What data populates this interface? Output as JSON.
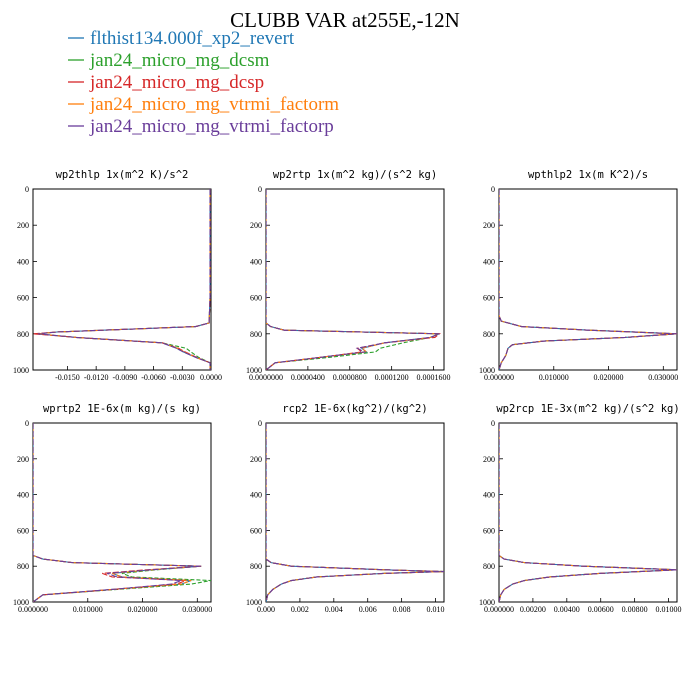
{
  "title": "CLUBB VAR at255E,-12N",
  "legend": [
    {
      "label": "flthist134.000f_xp2_revert",
      "color": "#1f77b4"
    },
    {
      "label": "jan24_micro_mg_dcsm",
      "color": "#2ca02c"
    },
    {
      "label": "jan24_micro_mg_dcsp",
      "color": "#d62728"
    },
    {
      "label": "jan24_micro_mg_vtrmi_factorm",
      "color": "#ff7f0e"
    },
    {
      "label": "jan24_micro_mg_vtrmi_factorp",
      "color": "#6a3d9a"
    }
  ],
  "chart_data": [
    {
      "type": "line",
      "title": "wp2thlp  1x(m^2 K)/s^2",
      "ylim": [
        1000,
        0
      ],
      "xlim": [
        -0.0185,
        0.0001
      ],
      "yticks": [
        "0",
        "200",
        "400",
        "600",
        "800",
        "1000"
      ],
      "xticks": [
        "-0.0150",
        "-0.0120",
        "-0.0090",
        "-0.0060",
        "-0.0030",
        "0.0000"
      ],
      "y": [
        0,
        600,
        740,
        760,
        790,
        800,
        820,
        850,
        880,
        900,
        930,
        960,
        1000
      ],
      "series": [
        {
          "values": [
            0,
            0,
            -0.0001,
            -0.0015,
            -0.016,
            -0.018,
            -0.014,
            -0.005,
            -0.0035,
            -0.0028,
            -0.0015,
            0,
            0
          ]
        },
        {
          "values": [
            0,
            0,
            -0.0001,
            -0.0015,
            -0.016,
            -0.018,
            -0.014,
            -0.005,
            -0.0025,
            -0.002,
            -0.0012,
            0,
            0
          ]
        },
        {
          "values": [
            0,
            0,
            -0.0001,
            -0.0015,
            -0.016,
            -0.0185,
            -0.014,
            -0.005,
            -0.0033,
            -0.0026,
            -0.0014,
            0,
            0
          ]
        },
        {
          "values": [
            0,
            0,
            -0.0001,
            -0.0015,
            -0.016,
            -0.018,
            -0.014,
            -0.005,
            -0.0034,
            -0.0027,
            -0.0015,
            0,
            0
          ]
        },
        {
          "values": [
            0,
            0,
            -0.0001,
            -0.0015,
            -0.016,
            -0.018,
            -0.014,
            -0.005,
            -0.0035,
            -0.0028,
            -0.0015,
            0,
            0
          ]
        }
      ]
    },
    {
      "type": "line",
      "title": "wp2rtp  1x(m^2 kg)/(s^2 kg)",
      "ylim": [
        1000,
        0
      ],
      "xlim": [
        0,
        0.000195
      ],
      "yticks": [
        "0",
        "200",
        "400",
        "600",
        "800",
        "1000"
      ],
      "xticks": [
        "0.0000000",
        "0.0000400",
        "0.0000800",
        "0.0001200",
        "0.0001600"
      ],
      "y": [
        0,
        740,
        760,
        780,
        800,
        820,
        850,
        880,
        900,
        930,
        960,
        1000
      ],
      "series": [
        {
          "values": [
            0,
            0,
            5e-06,
            2e-05,
            0.00019,
            0.00018,
            0.00013,
            0.000105,
            0.00011,
            6e-05,
            1e-05,
            0
          ]
        },
        {
          "values": [
            0,
            0,
            5e-06,
            2e-05,
            0.00019,
            0.00018,
            0.00015,
            0.000125,
            0.00012,
            7e-05,
            1e-05,
            0
          ]
        },
        {
          "values": [
            0,
            0,
            5e-06,
            2e-05,
            0.00019,
            0.000185,
            0.00013,
            0.0001,
            0.000105,
            6e-05,
            1e-05,
            0
          ]
        },
        {
          "values": [
            0,
            0,
            5e-06,
            2e-05,
            0.00019,
            0.00018,
            0.00013,
            0.000105,
            0.00011,
            6e-05,
            1e-05,
            0
          ]
        },
        {
          "values": [
            0,
            0,
            5e-06,
            2e-05,
            0.00019,
            0.00018,
            0.00013,
            0.0001,
            0.000108,
            6e-05,
            1e-05,
            0
          ]
        }
      ]
    },
    {
      "type": "line",
      "title": "wpthlp2  1x(m K^2)/s",
      "ylim": [
        1000,
        0
      ],
      "xlim": [
        0,
        0.0395
      ],
      "yticks": [
        "0",
        "200",
        "400",
        "600",
        "800",
        "1000"
      ],
      "xticks": [
        "0.000000",
        "0.010000",
        "0.020000",
        "0.030000"
      ],
      "y": [
        0,
        700,
        730,
        760,
        780,
        800,
        820,
        840,
        860,
        880,
        920,
        960,
        1000
      ],
      "series": [
        {
          "values": [
            0,
            0,
            0.0005,
            0.005,
            0.02,
            0.0395,
            0.028,
            0.01,
            0.003,
            0.002,
            0.0015,
            0.0005,
            0
          ]
        },
        {
          "values": [
            0,
            0,
            0.0005,
            0.005,
            0.02,
            0.0395,
            0.028,
            0.01,
            0.003,
            0.002,
            0.0015,
            0.0005,
            0
          ]
        },
        {
          "values": [
            0,
            0,
            0.0005,
            0.005,
            0.02,
            0.0395,
            0.028,
            0.01,
            0.003,
            0.002,
            0.0015,
            0.0005,
            0
          ]
        },
        {
          "values": [
            0,
            0,
            0.0005,
            0.005,
            0.02,
            0.0395,
            0.028,
            0.01,
            0.003,
            0.002,
            0.0015,
            0.0005,
            0
          ]
        },
        {
          "values": [
            0,
            0,
            0.0005,
            0.005,
            0.02,
            0.0395,
            0.028,
            0.01,
            0.003,
            0.002,
            0.0015,
            0.0005,
            0
          ]
        }
      ]
    },
    {
      "type": "line",
      "title": "wprtp2  1E-6x(m kg)/(s kg)",
      "ylim": [
        1000,
        0
      ],
      "xlim": [
        0,
        0.036
      ],
      "yticks": [
        "0",
        "200",
        "400",
        "600",
        "800",
        "1000"
      ],
      "xticks": [
        "0.000000",
        "0.010000",
        "0.020000",
        "0.030000"
      ],
      "y": [
        0,
        740,
        760,
        780,
        800,
        820,
        840,
        860,
        880,
        900,
        930,
        960,
        1000
      ],
      "series": [
        {
          "values": [
            0,
            0,
            0.002,
            0.008,
            0.034,
            0.024,
            0.016,
            0.018,
            0.032,
            0.03,
            0.016,
            0.002,
            0
          ]
        },
        {
          "values": [
            0,
            0,
            0.002,
            0.008,
            0.034,
            0.025,
            0.018,
            0.02,
            0.036,
            0.032,
            0.017,
            0.002,
            0
          ]
        },
        {
          "values": [
            0,
            0,
            0.002,
            0.008,
            0.034,
            0.023,
            0.014,
            0.016,
            0.031,
            0.029,
            0.016,
            0.002,
            0
          ]
        },
        {
          "values": [
            0,
            0,
            0.002,
            0.008,
            0.034,
            0.024,
            0.016,
            0.018,
            0.032,
            0.03,
            0.016,
            0.002,
            0
          ]
        },
        {
          "values": [
            0,
            0,
            0.002,
            0.008,
            0.034,
            0.024,
            0.015,
            0.017,
            0.03,
            0.028,
            0.016,
            0.002,
            0
          ]
        }
      ]
    },
    {
      "type": "line",
      "title": "rcp2  1E-6x(kg^2)/(kg^2)",
      "ylim": [
        1000,
        0
      ],
      "xlim": [
        0,
        0.0105
      ],
      "yticks": [
        "0",
        "200",
        "400",
        "600",
        "800",
        "1000"
      ],
      "xticks": [
        "0.000",
        "0.002",
        "0.004",
        "0.006",
        "0.008",
        "0.010"
      ],
      "y": [
        0,
        760,
        780,
        800,
        820,
        830,
        840,
        860,
        880,
        900,
        930,
        960,
        1000
      ],
      "series": [
        {
          "values": [
            0,
            0,
            0.0003,
            0.0015,
            0.007,
            0.0105,
            0.007,
            0.003,
            0.0015,
            0.0009,
            0.0004,
            0.0001,
            0
          ]
        },
        {
          "values": [
            0,
            0,
            0.0003,
            0.0015,
            0.007,
            0.0105,
            0.007,
            0.003,
            0.0015,
            0.0009,
            0.0004,
            0.0001,
            0
          ]
        },
        {
          "values": [
            0,
            0,
            0.0003,
            0.0015,
            0.007,
            0.0105,
            0.007,
            0.003,
            0.0015,
            0.0009,
            0.0004,
            0.0001,
            0
          ]
        },
        {
          "values": [
            0,
            0,
            0.0003,
            0.0015,
            0.007,
            0.0105,
            0.007,
            0.003,
            0.0015,
            0.0009,
            0.0004,
            0.0001,
            0
          ]
        },
        {
          "values": [
            0,
            0,
            0.0003,
            0.0015,
            0.007,
            0.0105,
            0.007,
            0.003,
            0.0015,
            0.0009,
            0.0004,
            0.0001,
            0
          ]
        }
      ]
    },
    {
      "type": "line",
      "title": "wp2rcp  1E-3x(m^2 kg)/(s^2 kg)",
      "ylim": [
        1000,
        0
      ],
      "xlim": [
        0,
        0.0105
      ],
      "yticks": [
        "0",
        "200",
        "400",
        "600",
        "800",
        "1000"
      ],
      "xticks": [
        "0.000000",
        "0.00200",
        "0.00400",
        "0.00600",
        "0.00800",
        "0.01000"
      ],
      "y": [
        0,
        740,
        760,
        780,
        800,
        820,
        840,
        860,
        880,
        900,
        930,
        960,
        1000
      ],
      "series": [
        {
          "values": [
            0,
            0,
            0.0003,
            0.0015,
            0.005,
            0.0105,
            0.006,
            0.003,
            0.0015,
            0.0008,
            0.0003,
            0.0001,
            0
          ]
        },
        {
          "values": [
            0,
            0,
            0.0003,
            0.0015,
            0.005,
            0.0105,
            0.006,
            0.003,
            0.0015,
            0.0008,
            0.0003,
            0.0001,
            0
          ]
        },
        {
          "values": [
            0,
            0,
            0.0003,
            0.0015,
            0.005,
            0.0105,
            0.006,
            0.003,
            0.0015,
            0.0008,
            0.0003,
            0.0001,
            0
          ]
        },
        {
          "values": [
            0,
            0,
            0.0003,
            0.0015,
            0.005,
            0.0105,
            0.006,
            0.003,
            0.0015,
            0.0008,
            0.0003,
            0.0001,
            0
          ]
        },
        {
          "values": [
            0,
            0,
            0.0003,
            0.0015,
            0.005,
            0.0105,
            0.006,
            0.003,
            0.0015,
            0.0008,
            0.0003,
            0.0001,
            0
          ]
        }
      ]
    }
  ]
}
